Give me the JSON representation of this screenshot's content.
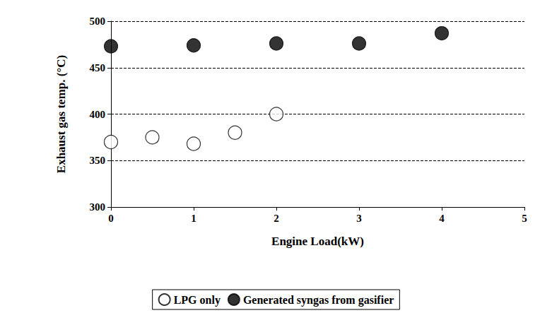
{
  "chart_data": {
    "type": "scatter",
    "x_label": "Engine Load(kW)",
    "y_label": "Exhaust gas temp. (°C)",
    "xlim": [
      0,
      5
    ],
    "xticks": [
      0,
      1,
      2,
      3,
      4,
      5
    ],
    "ylim": [
      300,
      500
    ],
    "yticks": [
      300,
      350,
      400,
      450,
      500
    ],
    "grid": true,
    "legend": "bottom",
    "series": [
      {
        "name": "LPG only",
        "color": "#000000",
        "marker": "circle-open",
        "x": [
          0,
          0.5,
          1,
          1.5,
          2
        ],
        "values": [
          370,
          375,
          368,
          380,
          400
        ]
      },
      {
        "name": "Generated syngas from gasifier",
        "color": "#000000",
        "marker": "circle",
        "x": [
          0,
          1,
          2,
          3,
          4
        ],
        "values": [
          473,
          474,
          476,
          476,
          487
        ]
      }
    ]
  }
}
